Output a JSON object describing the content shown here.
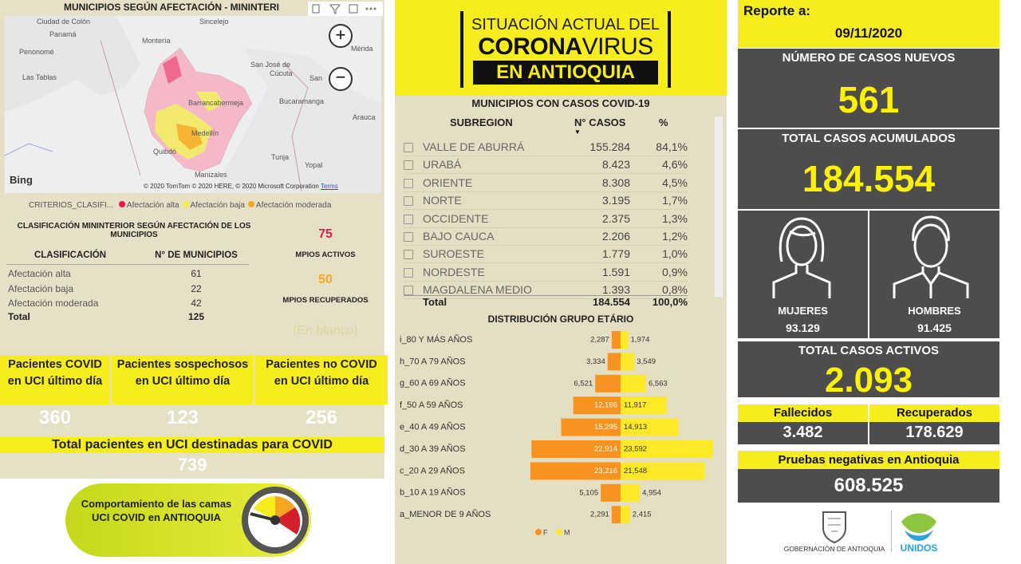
{
  "map_panel": {
    "title": "MUNICIPIOS SEGÚN AFECTACIÓN - MININTERI",
    "map_labels": [
      "Ciudad de Colón",
      "Panamá",
      "Penonomé",
      "Las Tablas",
      "Montería",
      "Sincelejo",
      "San José de",
      "Cúcuta",
      "Mérida",
      "San",
      "Barrancabermeja",
      "Bucaramanga",
      "Arauca",
      "Medellín",
      "Quibdó",
      "Tunja",
      "Yopal",
      "Manizales"
    ],
    "attribution": "Bing",
    "copyright": "© 2020 TomTom © 2020 HERE, © 2020 Microsoft Corporation",
    "terms": "Terms",
    "legend": {
      "title": "CRITERIOS_CLASIFI...",
      "items": [
        {
          "name": "Afectación alta",
          "color": "#e8194f"
        },
        {
          "name": "Afectación baja",
          "color": "#f3ec4a"
        },
        {
          "name": "Afectación moderada",
          "color": "#f6a623"
        }
      ]
    }
  },
  "classification": {
    "title": "CLASIFICACIÓN MININTERIOR SEGÚN AFECTACIÓN DE LOS MUNICIPIOS",
    "headers": [
      "CLASIFICACIÓN",
      "N° DE MUNICIPIOS"
    ],
    "rows": [
      [
        "Afectación alta",
        61
      ],
      [
        "Afectación baja",
        22
      ],
      [
        "Afectación moderada",
        42
      ]
    ],
    "total": [
      "Total",
      125
    ]
  },
  "municipalities": {
    "active": 75,
    "active_label": "MPIOS ACTIVOS",
    "recovered": 50,
    "recovered_label": "MPIOS RECUPERADOS",
    "blank": "(En blanco)"
  },
  "uci": {
    "cards": [
      {
        "label": "Pacientes COVID en UCI último día",
        "value": 360
      },
      {
        "label": "Pacientes sospechosos en UCI último día",
        "value": 123
      },
      {
        "label": "Pacientes no COVID en UCI último día",
        "value": 256
      }
    ],
    "total_label": "Total pacientes en UCI destinadas para COVID",
    "total": 739,
    "button": "Comportamiento de las camas UCI COVID en ANTIOQUIA"
  },
  "banner": {
    "line1": "SITUACIÓN ACTUAL DEL",
    "corona": "CORONA",
    "virus": "VIRUS",
    "line3": "EN ANTIOQUIA"
  },
  "subregions": {
    "title": "MUNICIPIOS CON CASOS COVID-19",
    "headers": [
      "SUBREGION",
      "N° CASOS",
      "%"
    ],
    "rows": [
      [
        "VALLE DE ABURRÁ",
        "155.284",
        "84,1%"
      ],
      [
        "URABÁ",
        "8.423",
        "4,6%"
      ],
      [
        "ORIENTE",
        "8.308",
        "4,5%"
      ],
      [
        "NORTE",
        "3.195",
        "1,7%"
      ],
      [
        "OCCIDENTE",
        "2.375",
        "1,3%"
      ],
      [
        "BAJO CAUCA",
        "2.206",
        "1,2%"
      ],
      [
        "SUROESTE",
        "1.779",
        "1,0%"
      ],
      [
        "NORDESTE",
        "1.591",
        "0,9%"
      ],
      [
        "MAGDALENA MEDIO",
        "1.393",
        "0,8%"
      ]
    ],
    "total": [
      "Total",
      "184.554",
      "100,0%"
    ]
  },
  "chart_data": {
    "type": "pyramid",
    "title": "DISTRIBUCIÓN GRUPO ETÁRIO",
    "categories": [
      "i_80 Y MÁS AÑOS",
      "h_70 A 79 AÑOS",
      "g_60 A 69 AÑOS",
      "f_50 A 59 AÑOS",
      "e_40 A 49 AÑOS",
      "d_30 A 39 AÑOS",
      "c_20 A 29 AÑOS",
      "b_10 A 19 AÑOS",
      "a_MENOR DE 9 AÑOS"
    ],
    "series": [
      {
        "name": "F",
        "color": "#f7931e",
        "values": [
          2287,
          3334,
          6521,
          12166,
          15295,
          22914,
          23216,
          5105,
          2291
        ],
        "value_labels": [
          "2,287",
          "3,334",
          "6,521",
          "12,166",
          "15,295",
          "22,914",
          "23,216",
          "5,105",
          "2,291"
        ]
      },
      {
        "name": "M",
        "color": "#fde82a",
        "values": [
          1974,
          3549,
          6563,
          11917,
          14913,
          23592,
          21548,
          4954,
          2415
        ],
        "value_labels": [
          "1,974",
          "3,549",
          "6,563",
          "11,917",
          "14,913",
          "23,592",
          "21,548",
          "4,954",
          "2,415"
        ]
      }
    ]
  },
  "report": {
    "label": "Reporte a:",
    "date": "09/11/2020",
    "new_cases_label": "NÚMERO DE CASOS NUEVOS",
    "new_cases": "561",
    "total_label": "TOTAL CASOS ACUMULADOS",
    "total": "184.554",
    "women_label": "MUJERES",
    "women": "93.129",
    "men_label": "HOMBRES",
    "men": "91.425",
    "active_label": "TOTAL CASOS ACTIVOS",
    "active": "2.093",
    "deaths_label": "Fallecidos",
    "deaths": "3.482",
    "recovered_label": "Recuperados",
    "recovered": "178.629",
    "negative_label": "Pruebas negativas en Antioquia",
    "negative": "608.525",
    "gov_logo": "GOBERNACIÓN DE ANTIOQUIA",
    "unidos_logo": "UNIDOS"
  }
}
